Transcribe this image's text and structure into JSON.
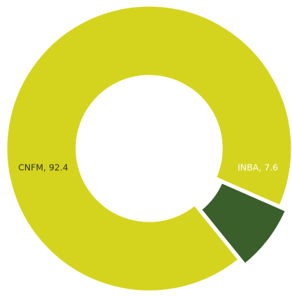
{
  "chart_data": {
    "type": "donut",
    "categories": [
      "CNFM",
      "INBA"
    ],
    "values": [
      92.4,
      7.6
    ],
    "value_labels": [
      "CNFM, 92.4",
      "INBA, 7.6"
    ],
    "colors": [
      "#d4d41f",
      "#3b5f2b"
    ],
    "label_colors": [
      "#333333",
      "#ffffff"
    ]
  }
}
